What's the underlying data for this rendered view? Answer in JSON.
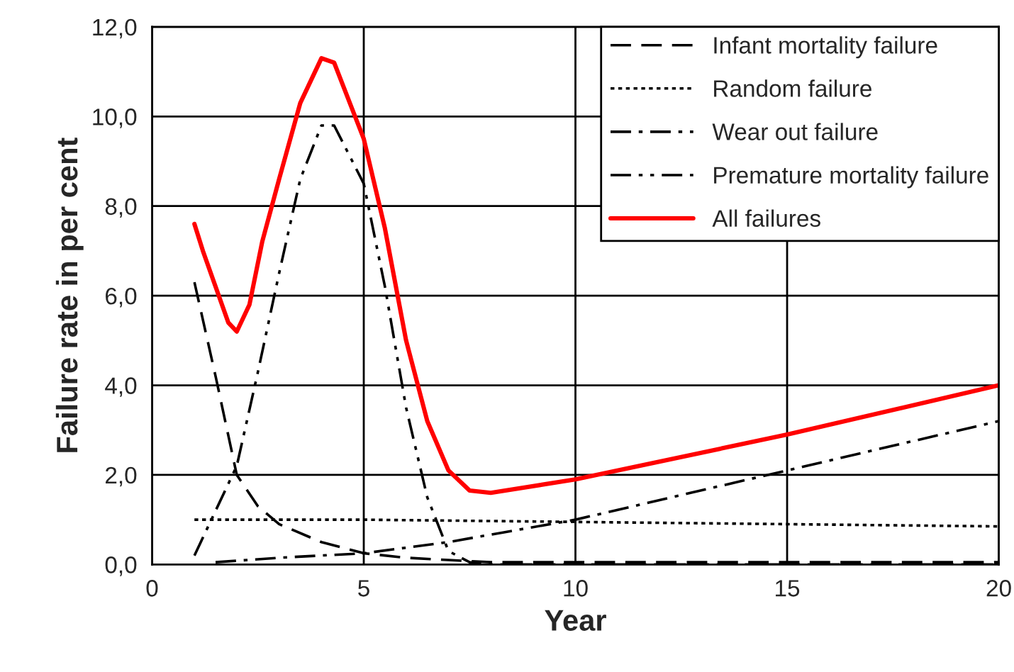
{
  "chart_data": {
    "type": "line",
    "xlabel": "Year",
    "ylabel": "Failure rate in per cent",
    "xlim": [
      0,
      20
    ],
    "xticks": [
      0,
      5,
      10,
      15,
      20
    ],
    "ylim": [
      0,
      12
    ],
    "yticks": [
      {
        "value": 0,
        "label": "0,0"
      },
      {
        "value": 2,
        "label": "2,0"
      },
      {
        "value": 4,
        "label": "4,0"
      },
      {
        "value": 6,
        "label": "6,0"
      },
      {
        "value": 8,
        "label": "8,0"
      },
      {
        "value": 10,
        "label": "10,0"
      },
      {
        "value": 12,
        "label": "12,0"
      }
    ],
    "grid": true,
    "legend": "top right",
    "marker": "none",
    "series": [
      {
        "name": "Infant mortality failure",
        "color": "#000000",
        "line_style": "dashed",
        "x": [
          1,
          1.5,
          2,
          2.5,
          3,
          4,
          5,
          6,
          7,
          8,
          10,
          15,
          20
        ],
        "values": [
          6.3,
          4.2,
          2.0,
          1.3,
          0.9,
          0.5,
          0.25,
          0.15,
          0.1,
          0.05,
          0.05,
          0.05,
          0.05
        ]
      },
      {
        "name": "Random failure",
        "color": "#000000",
        "line_style": "dotted",
        "x": [
          1,
          5,
          10,
          15,
          20
        ],
        "values": [
          1.0,
          1.0,
          0.95,
          0.9,
          0.85
        ]
      },
      {
        "name": "Wear out failure",
        "color": "#000000",
        "line_style": "dashdot",
        "x": [
          1.5,
          3,
          5,
          7,
          10,
          15,
          20
        ],
        "values": [
          0.05,
          0.15,
          0.25,
          0.5,
          1.0,
          2.1,
          3.2
        ]
      },
      {
        "name": "Premature mortality failure",
        "color": "#000000",
        "line_style": "dashdotdot",
        "x": [
          1,
          1.5,
          2,
          2.5,
          3,
          3.5,
          4,
          4.3,
          5,
          5.5,
          6,
          6.5,
          7,
          7.5,
          8,
          20
        ],
        "values": [
          0.2,
          1.2,
          2.2,
          4.3,
          6.5,
          8.6,
          9.8,
          9.8,
          8.5,
          6.2,
          3.5,
          1.5,
          0.3,
          0.05,
          0,
          0
        ]
      },
      {
        "name": "All failures",
        "color": "#ff0000",
        "line_style": "solid",
        "x": [
          1,
          1.2,
          1.5,
          1.8,
          2,
          2.3,
          2.6,
          3,
          3.5,
          4,
          4.3,
          5,
          5.5,
          6,
          6.5,
          7,
          7.5,
          8,
          10,
          15,
          20
        ],
        "values": [
          7.6,
          7.0,
          6.2,
          5.4,
          5.2,
          5.8,
          7.2,
          8.6,
          10.3,
          11.3,
          11.2,
          9.5,
          7.5,
          5.0,
          3.2,
          2.1,
          1.65,
          1.6,
          1.9,
          2.9,
          4.0
        ]
      }
    ]
  }
}
